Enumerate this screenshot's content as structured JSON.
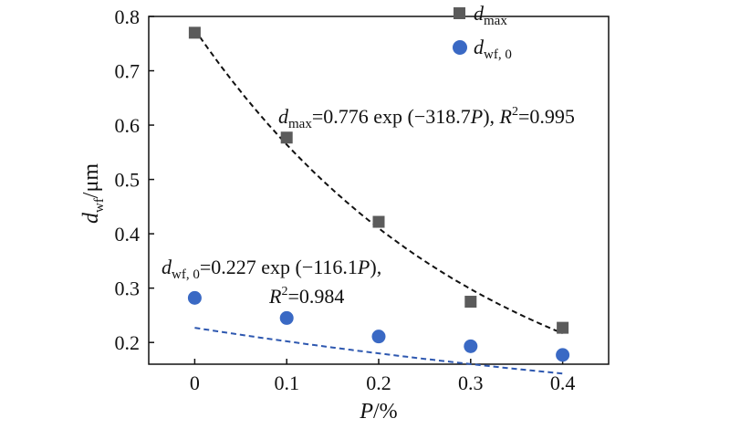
{
  "chart_data": {
    "type": "scatter",
    "x_ticks": [
      "0",
      "0.1",
      "0.2",
      "0.3",
      "0.4"
    ],
    "y_ticks": [
      "0.2",
      "0.3",
      "0.4",
      "0.5",
      "0.6",
      "0.7",
      "0.8"
    ],
    "xlim": [
      -0.05,
      0.45
    ],
    "ylim": [
      0.16,
      0.8
    ],
    "xlabel": {
      "symbol": "P",
      "rest": "/%"
    },
    "ylabel": {
      "symbol": "d",
      "sub": "wf",
      "rest": "/μm"
    },
    "series": [
      {
        "name": "d_max",
        "legend": {
          "symbol": "d",
          "sub": "max"
        },
        "marker": "square",
        "color": "#5b5b5b",
        "x": [
          0,
          0.1,
          0.2,
          0.3,
          0.4
        ],
        "y": [
          0.77,
          0.577,
          0.422,
          0.275,
          0.227
        ],
        "fit": {
          "a": 0.776,
          "b": 318.7,
          "r2": 0.995,
          "line_color": "#111111"
        }
      },
      {
        "name": "d_wf,0",
        "legend": {
          "symbol": "d",
          "sub": "wf, 0"
        },
        "marker": "circle",
        "color": "#3a69c4",
        "x": [
          0,
          0.1,
          0.2,
          0.3,
          0.4
        ],
        "y": [
          0.282,
          0.245,
          0.211,
          0.193,
          0.177
        ],
        "fit": {
          "a": 0.227,
          "b": 116.1,
          "r2": 0.984,
          "line_color": "#2e58b0"
        }
      }
    ],
    "annotations": {
      "dmax": {
        "symbol": "d",
        "sub": "max",
        "eq": "=0.776 exp (−318.7",
        "P": "P",
        "close": "), ",
        "R": "R",
        "sup": "2",
        "r2": "=0.995"
      },
      "dwf": {
        "symbol": "d",
        "sub": "wf, 0",
        "eq": "=0.227 exp (−116.1",
        "P": "P",
        "close": "),",
        "R": "R",
        "sup": "2",
        "r2": "=0.984"
      }
    }
  }
}
